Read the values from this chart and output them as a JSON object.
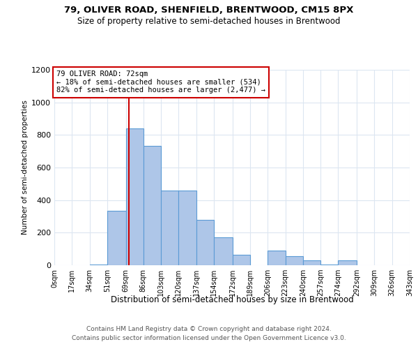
{
  "title1": "79, OLIVER ROAD, SHENFIELD, BRENTWOOD, CM15 8PX",
  "title2": "Size of property relative to semi-detached houses in Brentwood",
  "xlabel": "Distribution of semi-detached houses by size in Brentwood",
  "ylabel": "Number of semi-detached properties",
  "property_size": 72,
  "property_label": "79 OLIVER ROAD: 72sqm",
  "smaller_pct": 18,
  "smaller_n": 534,
  "larger_pct": 82,
  "larger_n": 2477,
  "bin_edges": [
    0,
    17,
    34,
    51,
    69,
    86,
    103,
    120,
    137,
    154,
    172,
    189,
    206,
    223,
    240,
    257,
    274,
    292,
    309,
    326,
    343
  ],
  "bin_labels": [
    "0sqm",
    "17sqm",
    "34sqm",
    "51sqm",
    "69sqm",
    "86sqm",
    "103sqm",
    "120sqm",
    "137sqm",
    "154sqm",
    "172sqm",
    "189sqm",
    "206sqm",
    "223sqm",
    "240sqm",
    "257sqm",
    "274sqm",
    "292sqm",
    "309sqm",
    "326sqm",
    "343sqm"
  ],
  "bar_heights": [
    0,
    0,
    5,
    335,
    840,
    735,
    460,
    460,
    280,
    170,
    65,
    0,
    90,
    55,
    30,
    5,
    30,
    0,
    0,
    0
  ],
  "bar_color": "#aec6e8",
  "bar_edge_color": "#5b9bd5",
  "property_line_color": "#cc0000",
  "annotation_box_color": "#cc0000",
  "grid_color": "#dce6f1",
  "background_color": "#ffffff",
  "ylim_max": 1200,
  "yticks": [
    0,
    200,
    400,
    600,
    800,
    1000,
    1200
  ],
  "footer_line1": "Contains HM Land Registry data © Crown copyright and database right 2024.",
  "footer_line2": "Contains public sector information licensed under the Open Government Licence v3.0."
}
